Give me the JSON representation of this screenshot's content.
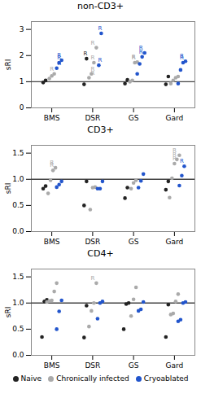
{
  "chart_data": [
    {
      "type": "scatter",
      "title": "non-CD3+",
      "y_label": "sRI",
      "categories": [
        "BMS",
        "DSR",
        "GS",
        "Gard"
      ],
      "ylim": [
        0,
        3.3
      ],
      "yticks": [
        0,
        1,
        2,
        3
      ],
      "reference_line": 1.0,
      "response_label": "R",
      "series": [
        {
          "name": "Naive",
          "color": "#222222",
          "values": [
            [
              0.97,
              1.05
            ],
            [
              0.9,
              1.88
            ],
            [
              0.93,
              1.07
            ],
            [
              0.9,
              1.2
            ]
          ],
          "response_counts": [
            0,
            1,
            0,
            0
          ]
        },
        {
          "name": "Chronically infected",
          "color": "#aaaaaa",
          "values": [
            [
              1.12,
              1.22,
              1.3
            ],
            [
              1.15,
              1.3,
              1.73,
              2.3
            ],
            [
              1.0,
              1.05,
              1.73,
              1.75
            ],
            [
              0.93,
              1.05,
              1.15,
              1.2
            ]
          ],
          "response_counts": [
            1,
            4,
            2,
            0
          ]
        },
        {
          "name": "Cryoablated",
          "color": "#2255cc",
          "values": [
            [
              1.52,
              1.72,
              1.82
            ],
            [
              1.63,
              2.85
            ],
            [
              1.3,
              1.68,
              1.95,
              2.1
            ],
            [
              0.93,
              1.45,
              1.73,
              1.78
            ]
          ],
          "response_counts": [
            3,
            2,
            2,
            2
          ]
        }
      ]
    },
    {
      "type": "scatter",
      "title": "CD3+",
      "y_label": "sRI",
      "categories": [
        "BMS",
        "DSR",
        "GS",
        "Gard"
      ],
      "ylim": [
        0.0,
        1.65
      ],
      "yticks": [
        {
          "value": 0.0,
          "label": "0.0"
        },
        0.5,
        {
          "value": 1.0,
          "label": "1.0"
        },
        1.5
      ],
      "reference_line": 1.0,
      "response_label": "R",
      "series": [
        {
          "name": "Naive",
          "color": "#222222",
          "values": [
            [
              0.82,
              0.87
            ],
            [
              0.5,
              0.96
            ],
            [
              0.64,
              0.84
            ],
            [
              0.8,
              0.96
            ]
          ],
          "response_counts": [
            0,
            0,
            0,
            0
          ]
        },
        {
          "name": "Chronically infected",
          "color": "#aaaaaa",
          "values": [
            [
              0.73,
              0.98,
              1.17,
              1.22
            ],
            [
              0.42,
              0.84,
              0.85
            ],
            [
              0.82,
              0.93,
              0.98
            ],
            [
              0.65,
              1.02,
              1.3,
              1.38,
              1.46
            ]
          ],
          "response_counts": [
            2,
            0,
            0,
            3
          ]
        },
        {
          "name": "Cryoablated",
          "color": "#2255cc",
          "values": [
            [
              0.85,
              0.9,
              0.96
            ],
            [
              0.82,
              0.82,
              0.96
            ],
            [
              0.84,
              0.97,
              1.1
            ],
            [
              0.88,
              1.07,
              1.25
            ]
          ],
          "response_counts": [
            0,
            0,
            0,
            1
          ]
        }
      ]
    },
    {
      "type": "scatter",
      "title": "CD4+",
      "y_label": "sRI",
      "categories": [
        "BMS",
        "DSR",
        "GS",
        "Gard"
      ],
      "ylim": [
        0.0,
        1.65
      ],
      "yticks": [
        {
          "value": 0.0,
          "label": "0.0"
        },
        0.5,
        {
          "value": 1.0,
          "label": "1.0"
        },
        1.5
      ],
      "reference_line": 1.0,
      "response_label": "R",
      "legend": "bottom",
      "series": [
        {
          "name": "Naive",
          "color": "#222222",
          "values": [
            [
              0.35,
              1.03,
              1.06
            ],
            [
              0.34,
              0.95
            ],
            [
              0.5,
              0.98,
              1.0
            ],
            [
              0.35,
              0.97
            ]
          ],
          "response_counts": [
            0,
            0,
            0,
            0
          ]
        },
        {
          "name": "Chronically infected",
          "color": "#aaaaaa",
          "values": [
            [
              1.02,
              1.04,
              1.05,
              1.22,
              1.38
            ],
            [
              0.55,
              0.85,
              1.0,
              1.38
            ],
            [
              0.75,
              1.07,
              1.3
            ],
            [
              0.78,
              0.8,
              1.03,
              1.17
            ]
          ],
          "response_counts": [
            0,
            1,
            0,
            0
          ]
        },
        {
          "name": "Cryoablated",
          "color": "#2255cc",
          "values": [
            [
              0.5,
              0.84,
              1.05
            ],
            [
              0.7,
              1.0,
              1.03
            ],
            [
              0.85,
              0.88,
              1.02
            ],
            [
              0.65,
              0.68,
              1.0,
              1.02
            ]
          ],
          "response_counts": [
            0,
            0,
            0,
            0
          ]
        }
      ]
    }
  ]
}
